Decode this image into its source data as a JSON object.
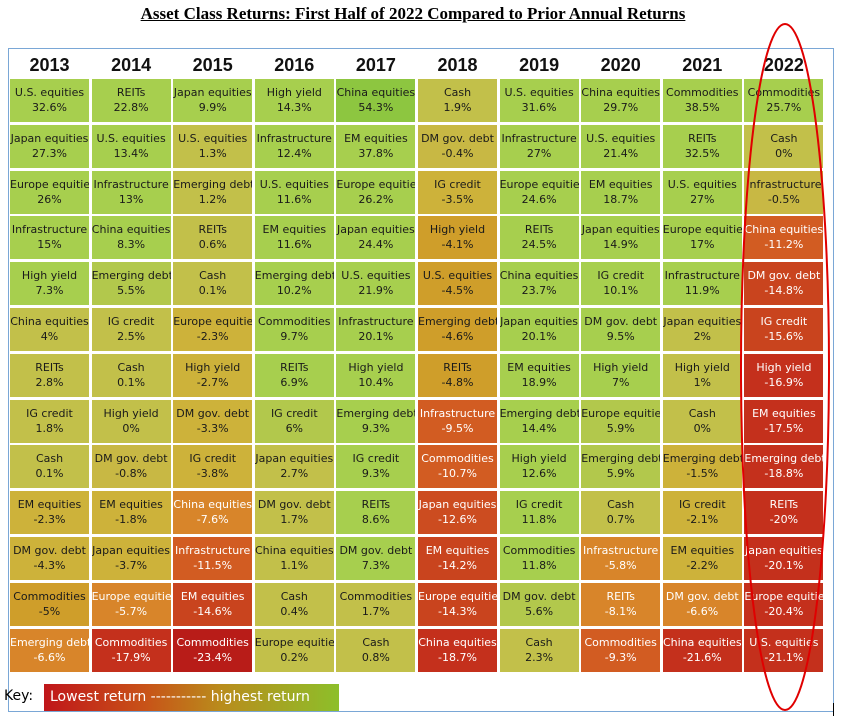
{
  "chart_data": {
    "type": "table",
    "title": "Asset Class Returns: First Half of 2022 Compared to Prior Annual Returns",
    "years": [
      "2013",
      "2014",
      "2015",
      "2016",
      "2017",
      "2018",
      "2019",
      "2020",
      "2021",
      "2022"
    ],
    "columns": [
      {
        "year": "2013",
        "cells": [
          {
            "label": "U.S. equities",
            "value": "32.6%",
            "color": "#a7cf4e"
          },
          {
            "label": "Japan equities",
            "value": "27.3%",
            "color": "#a7cf4e"
          },
          {
            "label": "Europe equities",
            "value": "26%",
            "color": "#a7cf4e"
          },
          {
            "label": "Infrastructure",
            "value": "15%",
            "color": "#a7cf4e"
          },
          {
            "label": "High yield",
            "value": "7.3%",
            "color": "#a7cf4e"
          },
          {
            "label": "China equities",
            "value": "4%",
            "color": "#c2c04a"
          },
          {
            "label": "REITs",
            "value": "2.8%",
            "color": "#c2c04a"
          },
          {
            "label": "IG credit",
            "value": "1.8%",
            "color": "#c2c04a"
          },
          {
            "label": "Cash",
            "value": "0.1%",
            "color": "#c2c04a"
          },
          {
            "label": "EM equities",
            "value": "-2.3%",
            "color": "#cdb23a"
          },
          {
            "label": "DM gov. debt",
            "value": "-4.3%",
            "color": "#cdb23a"
          },
          {
            "label": "Commodities",
            "value": "-5%",
            "color": "#cf9e2a"
          },
          {
            "label": "Emerging debt",
            "value": "-6.6%",
            "color": "#d8852a"
          }
        ]
      },
      {
        "year": "2014",
        "cells": [
          {
            "label": "REITs",
            "value": "22.8%",
            "color": "#a7cf4e"
          },
          {
            "label": "U.S. equities",
            "value": "13.4%",
            "color": "#a7cf4e"
          },
          {
            "label": "Infrastructure",
            "value": "13%",
            "color": "#a7cf4e"
          },
          {
            "label": "China equities",
            "value": "8.3%",
            "color": "#a7cf4e"
          },
          {
            "label": "Emerging debt",
            "value": "5.5%",
            "color": "#b2c84c"
          },
          {
            "label": "IG credit",
            "value": "2.5%",
            "color": "#c2c04a"
          },
          {
            "label": "Cash",
            "value": "0.1%",
            "color": "#c2c04a"
          },
          {
            "label": "High yield",
            "value": "0%",
            "color": "#c2c04a"
          },
          {
            "label": "DM gov. debt",
            "value": "-0.8%",
            "color": "#c8b844"
          },
          {
            "label": "EM equities",
            "value": "-1.8%",
            "color": "#cdb23a"
          },
          {
            "label": "Japan equities",
            "value": "-3.7%",
            "color": "#cdb23a"
          },
          {
            "label": "Europe equities",
            "value": "-5.7%",
            "color": "#d8852a"
          },
          {
            "label": "Commodities",
            "value": "-17.9%",
            "color": "#c4301c"
          }
        ]
      },
      {
        "year": "2015",
        "cells": [
          {
            "label": "Japan equities",
            "value": "9.9%",
            "color": "#a7cf4e"
          },
          {
            "label": "U.S. equities",
            "value": "1.3%",
            "color": "#c2c04a"
          },
          {
            "label": "Emerging debt",
            "value": "1.2%",
            "color": "#c2c04a"
          },
          {
            "label": "REITs",
            "value": "0.6%",
            "color": "#c2c04a"
          },
          {
            "label": "Cash",
            "value": "0.1%",
            "color": "#c2c04a"
          },
          {
            "label": "Europe equities",
            "value": "-2.3%",
            "color": "#cdb23a"
          },
          {
            "label": "High yield",
            "value": "-2.7%",
            "color": "#cdb23a"
          },
          {
            "label": "DM gov. debt",
            "value": "-3.3%",
            "color": "#cdb23a"
          },
          {
            "label": "IG credit",
            "value": "-3.8%",
            "color": "#cdb23a"
          },
          {
            "label": "China equities",
            "value": "-7.6%",
            "color": "#d8852a"
          },
          {
            "label": "Infrastructure",
            "value": "-11.5%",
            "color": "#d25c22"
          },
          {
            "label": "EM equities",
            "value": "-14.6%",
            "color": "#c9441e"
          },
          {
            "label": "Commodities",
            "value": "-23.4%",
            "color": "#b81c18"
          }
        ]
      },
      {
        "year": "2016",
        "cells": [
          {
            "label": "High yield",
            "value": "14.3%",
            "color": "#a7cf4e"
          },
          {
            "label": "Infrastructure",
            "value": "12.4%",
            "color": "#a7cf4e"
          },
          {
            "label": "U.S. equities",
            "value": "11.6%",
            "color": "#a7cf4e"
          },
          {
            "label": "EM equities",
            "value": "11.6%",
            "color": "#a7cf4e"
          },
          {
            "label": "Emerging debt",
            "value": "10.2%",
            "color": "#a7cf4e"
          },
          {
            "label": "Commodities",
            "value": "9.7%",
            "color": "#a7cf4e"
          },
          {
            "label": "REITs",
            "value": "6.9%",
            "color": "#a7cf4e"
          },
          {
            "label": "IG credit",
            "value": "6%",
            "color": "#b2c84c"
          },
          {
            "label": "Japan equities",
            "value": "2.7%",
            "color": "#c2c04a"
          },
          {
            "label": "DM gov. debt",
            "value": "1.7%",
            "color": "#c2c04a"
          },
          {
            "label": "China equities",
            "value": "1.1%",
            "color": "#c2c04a"
          },
          {
            "label": "Cash",
            "value": "0.4%",
            "color": "#c2c04a"
          },
          {
            "label": "Europe equities",
            "value": "0.2%",
            "color": "#c2c04a"
          }
        ]
      },
      {
        "year": "2017",
        "cells": [
          {
            "label": "China equities",
            "value": "54.3%",
            "color": "#8dc640"
          },
          {
            "label": "EM equities",
            "value": "37.8%",
            "color": "#a7cf4e"
          },
          {
            "label": "Europe equities",
            "value": "26.2%",
            "color": "#a7cf4e"
          },
          {
            "label": "Japan equities",
            "value": "24.4%",
            "color": "#a7cf4e"
          },
          {
            "label": "U.S. equities",
            "value": "21.9%",
            "color": "#a7cf4e"
          },
          {
            "label": "Infrastructure",
            "value": "20.1%",
            "color": "#a7cf4e"
          },
          {
            "label": "High yield",
            "value": "10.4%",
            "color": "#a7cf4e"
          },
          {
            "label": "Emerging debt",
            "value": "9.3%",
            "color": "#a7cf4e"
          },
          {
            "label": "IG credit",
            "value": "9.3%",
            "color": "#a7cf4e"
          },
          {
            "label": "REITs",
            "value": "8.6%",
            "color": "#a7cf4e"
          },
          {
            "label": "DM gov. debt",
            "value": "7.3%",
            "color": "#a7cf4e"
          },
          {
            "label": "Commodities",
            "value": "1.7%",
            "color": "#c2c04a"
          },
          {
            "label": "Cash",
            "value": "0.8%",
            "color": "#c2c04a"
          }
        ]
      },
      {
        "year": "2018",
        "cells": [
          {
            "label": "Cash",
            "value": "1.9%",
            "color": "#c2c04a"
          },
          {
            "label": "DM gov. debt",
            "value": "-0.4%",
            "color": "#c8b844"
          },
          {
            "label": "IG credit",
            "value": "-3.5%",
            "color": "#cdb23a"
          },
          {
            "label": "High yield",
            "value": "-4.1%",
            "color": "#cf9e2a"
          },
          {
            "label": "U.S. equities",
            "value": "-4.5%",
            "color": "#cf9e2a"
          },
          {
            "label": "Emerging debt",
            "value": "-4.6%",
            "color": "#cf9e2a"
          },
          {
            "label": "REITs",
            "value": "-4.8%",
            "color": "#cf9e2a"
          },
          {
            "label": "Infrastructure",
            "value": "-9.5%",
            "color": "#d25c22"
          },
          {
            "label": "Commodities",
            "value": "-10.7%",
            "color": "#d25c22"
          },
          {
            "label": "Japan equities",
            "value": "-12.6%",
            "color": "#cc4c20"
          },
          {
            "label": "EM equities",
            "value": "-14.2%",
            "color": "#c9441e"
          },
          {
            "label": "Europe equities",
            "value": "-14.3%",
            "color": "#c9441e"
          },
          {
            "label": "China equities",
            "value": "-18.7%",
            "color": "#c4301c"
          }
        ]
      },
      {
        "year": "2019",
        "cells": [
          {
            "label": "U.S. equities",
            "value": "31.6%",
            "color": "#a7cf4e"
          },
          {
            "label": "Infrastructure",
            "value": "27%",
            "color": "#a7cf4e"
          },
          {
            "label": "Europe equities",
            "value": "24.6%",
            "color": "#a7cf4e"
          },
          {
            "label": "REITs",
            "value": "24.5%",
            "color": "#a7cf4e"
          },
          {
            "label": "China equities",
            "value": "23.7%",
            "color": "#a7cf4e"
          },
          {
            "label": "Japan equities",
            "value": "20.1%",
            "color": "#a7cf4e"
          },
          {
            "label": "EM equities",
            "value": "18.9%",
            "color": "#a7cf4e"
          },
          {
            "label": "Emerging debt",
            "value": "14.4%",
            "color": "#a7cf4e"
          },
          {
            "label": "High yield",
            "value": "12.6%",
            "color": "#a7cf4e"
          },
          {
            "label": "IG credit",
            "value": "11.8%",
            "color": "#a7cf4e"
          },
          {
            "label": "Commodities",
            "value": "11.8%",
            "color": "#a7cf4e"
          },
          {
            "label": "DM gov. debt",
            "value": "5.6%",
            "color": "#b2c84c"
          },
          {
            "label": "Cash",
            "value": "2.3%",
            "color": "#c2c04a"
          }
        ]
      },
      {
        "year": "2020",
        "cells": [
          {
            "label": "China equities",
            "value": "29.7%",
            "color": "#a7cf4e"
          },
          {
            "label": "U.S. equities",
            "value": "21.4%",
            "color": "#a7cf4e"
          },
          {
            "label": "EM equities",
            "value": "18.7%",
            "color": "#a7cf4e"
          },
          {
            "label": "Japan equities",
            "value": "14.9%",
            "color": "#a7cf4e"
          },
          {
            "label": "IG credit",
            "value": "10.1%",
            "color": "#a7cf4e"
          },
          {
            "label": "DM gov. debt",
            "value": "9.5%",
            "color": "#a7cf4e"
          },
          {
            "label": "High yield",
            "value": "7%",
            "color": "#a7cf4e"
          },
          {
            "label": "Europe equities",
            "value": "5.9%",
            "color": "#b2c84c"
          },
          {
            "label": "Emerging debt",
            "value": "5.9%",
            "color": "#b2c84c"
          },
          {
            "label": "Cash",
            "value": "0.7%",
            "color": "#c2c04a"
          },
          {
            "label": "Infrastructure",
            "value": "-5.8%",
            "color": "#d8852a"
          },
          {
            "label": "REITs",
            "value": "-8.1%",
            "color": "#d8852a"
          },
          {
            "label": "Commodities",
            "value": "-9.3%",
            "color": "#d25c22"
          }
        ]
      },
      {
        "year": "2021",
        "cells": [
          {
            "label": "Commodities",
            "value": "38.5%",
            "color": "#a7cf4e"
          },
          {
            "label": "REITs",
            "value": "32.5%",
            "color": "#a7cf4e"
          },
          {
            "label": "U.S. equities",
            "value": "27%",
            "color": "#a7cf4e"
          },
          {
            "label": "Europe equities",
            "value": "17%",
            "color": "#a7cf4e"
          },
          {
            "label": "Infrastructure",
            "value": "11.9%",
            "color": "#a7cf4e"
          },
          {
            "label": "Japan equities",
            "value": "2%",
            "color": "#c2c04a"
          },
          {
            "label": "High yield",
            "value": "1%",
            "color": "#c2c04a"
          },
          {
            "label": "Cash",
            "value": "0%",
            "color": "#c2c04a"
          },
          {
            "label": "Emerging debt",
            "value": "-1.5%",
            "color": "#cdb23a"
          },
          {
            "label": "IG credit",
            "value": "-2.1%",
            "color": "#cdb23a"
          },
          {
            "label": "EM equities",
            "value": "-2.2%",
            "color": "#cdb23a"
          },
          {
            "label": "DM gov. debt",
            "value": "-6.6%",
            "color": "#d8852a"
          },
          {
            "label": "China equities",
            "value": "-21.6%",
            "color": "#c4301c"
          }
        ]
      },
      {
        "year": "2022",
        "cells": [
          {
            "label": "Commodities",
            "value": "25.7%",
            "color": "#a7cf4e"
          },
          {
            "label": "Cash",
            "value": "0%",
            "color": "#c2c04a"
          },
          {
            "label": "Infrastructure",
            "value": "-0.5%",
            "color": "#c8b844"
          },
          {
            "label": "China equities",
            "value": "-11.2%",
            "color": "#d25c22"
          },
          {
            "label": "DM gov. debt",
            "value": "-14.8%",
            "color": "#c9441e"
          },
          {
            "label": "IG credit",
            "value": "-15.6%",
            "color": "#c9441e"
          },
          {
            "label": "High yield",
            "value": "-16.9%",
            "color": "#c4301c"
          },
          {
            "label": "EM equities",
            "value": "-17.5%",
            "color": "#c4301c"
          },
          {
            "label": "Emerging debt",
            "value": "-18.8%",
            "color": "#c4301c"
          },
          {
            "label": "REITs",
            "value": "-20%",
            "color": "#c4301c"
          },
          {
            "label": "Japan equities",
            "value": "-20.1%",
            "color": "#c4301c"
          },
          {
            "label": "Europe equities",
            "value": "-20.4%",
            "color": "#c4301c"
          },
          {
            "label": "U.S. equities",
            "value": "-21.1%",
            "color": "#c4301c"
          }
        ]
      }
    ],
    "key": {
      "prefix": "Key:",
      "text": "Lowest return ----------- highest return"
    },
    "highlight": {
      "column": "2022",
      "color": "#e00000"
    }
  }
}
